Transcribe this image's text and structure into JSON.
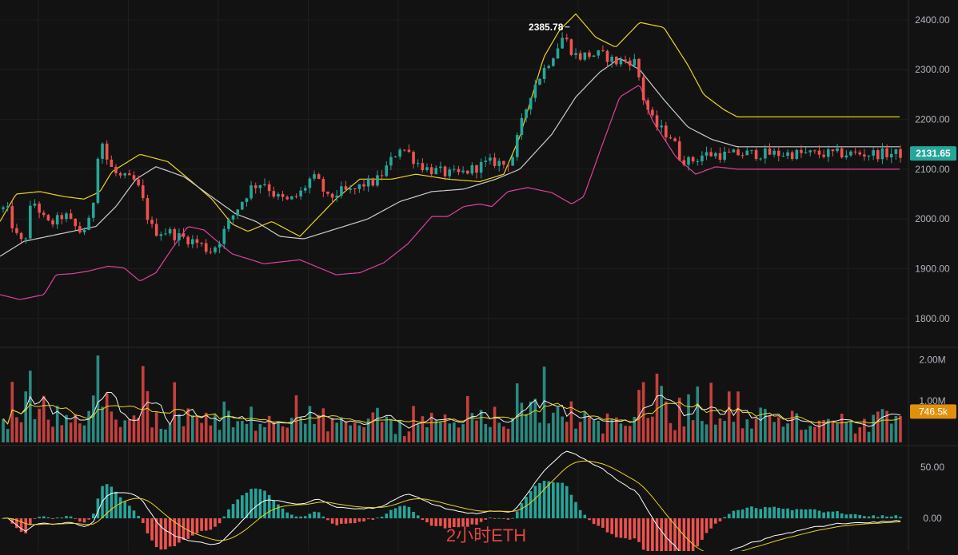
{
  "chart_data": [
    {
      "type": "candlestick",
      "name": "price",
      "ylim": [
        1750,
        2440
      ],
      "yticks": [
        1800,
        1900,
        2000,
        2100,
        2200,
        2300,
        2400
      ],
      "ytick_labels": [
        "1800.00",
        "1900.00",
        "2000.00",
        "2100.00",
        "2200.00",
        "2300.00",
        "2400.00"
      ],
      "bar_count": 200,
      "anchors": [
        [
          0,
          2000
        ],
        [
          6,
          2030
        ],
        [
          12,
          2005
        ],
        [
          18,
          1975
        ],
        [
          25,
          1950
        ],
        [
          32,
          1965
        ],
        [
          38,
          2020
        ],
        [
          45,
          2035
        ],
        [
          52,
          2005
        ],
        [
          60,
          1990
        ],
        [
          70,
          1995
        ],
        [
          80,
          2010
        ],
        [
          90,
          1990
        ],
        [
          100,
          1975
        ],
        [
          110,
          1985
        ],
        [
          116,
          2025
        ],
        [
          125,
          2175
        ],
        [
          132,
          2125
        ],
        [
          140,
          2100
        ],
        [
          148,
          2085
        ],
        [
          160,
          2080
        ],
        [
          170,
          2075
        ],
        [
          180,
          2030
        ],
        [
          188,
          1985
        ],
        [
          195,
          1975
        ],
        [
          210,
          1975
        ],
        [
          222,
          1965
        ],
        [
          235,
          1960
        ],
        [
          250,
          1950
        ],
        [
          262,
          1935
        ],
        [
          272,
          1950
        ],
        [
          285,
          1990
        ],
        [
          300,
          2030
        ],
        [
          315,
          2065
        ],
        [
          330,
          2075
        ],
        [
          345,
          2045
        ],
        [
          360,
          2035
        ],
        [
          375,
          2050
        ],
        [
          390,
          2085
        ],
        [
          400,
          2070
        ],
        [
          410,
          2040
        ],
        [
          425,
          2055
        ],
        [
          440,
          2055
        ],
        [
          455,
          2070
        ],
        [
          470,
          2075
        ],
        [
          480,
          2095
        ],
        [
          490,
          2120
        ],
        [
          500,
          2145
        ],
        [
          510,
          2135
        ],
        [
          520,
          2115
        ],
        [
          535,
          2100
        ],
        [
          550,
          2095
        ],
        [
          560,
          2090
        ],
        [
          575,
          2090
        ],
        [
          590,
          2100
        ],
        [
          605,
          2110
        ],
        [
          620,
          2115
        ],
        [
          630,
          2110
        ],
        [
          640,
          2120
        ],
        [
          652,
          2190
        ],
        [
          665,
          2260
        ],
        [
          680,
          2300
        ],
        [
          695,
          2340
        ],
        [
          705,
          2370
        ],
        [
          712,
          2345
        ],
        [
          722,
          2325
        ],
        [
          735,
          2330
        ],
        [
          750,
          2330
        ],
        [
          760,
          2325
        ],
        [
          770,
          2315
        ],
        [
          785,
          2320
        ],
        [
          795,
          2315
        ],
        [
          805,
          2240
        ],
        [
          818,
          2190
        ],
        [
          830,
          2175
        ],
        [
          840,
          2165
        ],
        [
          850,
          2125
        ],
        [
          860,
          2115
        ],
        [
          870,
          2120
        ],
        [
          880,
          2130
        ],
        [
          895,
          2130
        ],
        [
          910,
          2128
        ],
        [
          922,
          2131
        ]
      ],
      "upper_band_anchors": [
        [
          0,
          1995
        ],
        [
          20,
          2050
        ],
        [
          50,
          2055
        ],
        [
          80,
          2045
        ],
        [
          105,
          2040
        ],
        [
          125,
          2055
        ],
        [
          140,
          2095
        ],
        [
          175,
          2130
        ],
        [
          210,
          2115
        ],
        [
          240,
          2075
        ],
        [
          265,
          2040
        ],
        [
          290,
          1990
        ],
        [
          310,
          1975
        ],
        [
          340,
          1995
        ],
        [
          375,
          1965
        ],
        [
          420,
          2040
        ],
        [
          450,
          2080
        ],
        [
          490,
          2080
        ],
        [
          520,
          2090
        ],
        [
          560,
          2080
        ],
        [
          600,
          2075
        ],
        [
          630,
          2090
        ],
        [
          650,
          2165
        ],
        [
          680,
          2325
        ],
        [
          700,
          2380
        ],
        [
          720,
          2412
        ],
        [
          745,
          2365
        ],
        [
          770,
          2345
        ],
        [
          800,
          2395
        ],
        [
          830,
          2385
        ],
        [
          860,
          2310
        ],
        [
          880,
          2250
        ],
        [
          905,
          2220
        ],
        [
          922,
          2205
        ]
      ],
      "middle_band_anchors": [
        [
          0,
          1925
        ],
        [
          30,
          1955
        ],
        [
          60,
          1965
        ],
        [
          90,
          1975
        ],
        [
          120,
          1985
        ],
        [
          145,
          2025
        ],
        [
          170,
          2080
        ],
        [
          195,
          2105
        ],
        [
          230,
          2085
        ],
        [
          260,
          2050
        ],
        [
          295,
          2010
        ],
        [
          320,
          1995
        ],
        [
          350,
          1965
        ],
        [
          380,
          1960
        ],
        [
          420,
          1980
        ],
        [
          460,
          2000
        ],
        [
          500,
          2035
        ],
        [
          540,
          2055
        ],
        [
          580,
          2060
        ],
        [
          620,
          2080
        ],
        [
          650,
          2100
        ],
        [
          690,
          2170
        ],
        [
          720,
          2245
        ],
        [
          750,
          2295
        ],
        [
          775,
          2323
        ],
        [
          800,
          2300
        ],
        [
          830,
          2240
        ],
        [
          860,
          2185
        ],
        [
          890,
          2160
        ],
        [
          922,
          2145
        ]
      ],
      "lower_band_anchors": [
        [
          0,
          1848
        ],
        [
          25,
          1838
        ],
        [
          55,
          1848
        ],
        [
          70,
          1888
        ],
        [
          90,
          1890
        ],
        [
          110,
          1895
        ],
        [
          135,
          1905
        ],
        [
          155,
          1902
        ],
        [
          175,
          1875
        ],
        [
          195,
          1892
        ],
        [
          215,
          1940
        ],
        [
          235,
          1985
        ],
        [
          255,
          1978
        ],
        [
          290,
          1930
        ],
        [
          330,
          1910
        ],
        [
          375,
          1918
        ],
        [
          420,
          1888
        ],
        [
          450,
          1892
        ],
        [
          480,
          1912
        ],
        [
          510,
          1950
        ],
        [
          540,
          2005
        ],
        [
          560,
          2005
        ],
        [
          580,
          2025
        ],
        [
          600,
          2030
        ],
        [
          615,
          2025
        ],
        [
          635,
          2055
        ],
        [
          660,
          2063
        ],
        [
          690,
          2053
        ],
        [
          715,
          2030
        ],
        [
          730,
          2045
        ],
        [
          750,
          2135
        ],
        [
          775,
          2245
        ],
        [
          800,
          2270
        ],
        [
          815,
          2200
        ],
        [
          845,
          2125
        ],
        [
          870,
          2090
        ],
        [
          895,
          2105
        ],
        [
          922,
          2100
        ]
      ],
      "high_annotation": "2385.78",
      "high_bar": 711,
      "last_price": "2131.65",
      "last_price_value": 2131.65,
      "colors": {
        "up": "#26a69a",
        "down": "#ef5350",
        "upper": "#ecd41a",
        "middle": "#cccccc",
        "lower": "#e040a0",
        "badge": "#26a69a"
      }
    },
    {
      "type": "bar",
      "name": "volume",
      "ylim": [
        0,
        2200000
      ],
      "yticks": [
        1000000,
        2000000
      ],
      "ytick_labels": [
        "1.00M",
        "2.00M"
      ],
      "last_value_label": "746.5k",
      "last_value": 746500,
      "colors": {
        "badge": "#e0900c",
        "ma1": "#eeeeee",
        "ma2": "#ecd41a"
      }
    },
    {
      "type": "macd",
      "name": "macd",
      "ylim": [
        -32,
        68
      ],
      "yticks": [
        0,
        50
      ],
      "ytick_labels": [
        "0.00",
        "50.00"
      ],
      "colors": {
        "pos": "#26a69a",
        "neg": "#ef5350",
        "dif": "#ffffff",
        "dea": "#ecd41a"
      }
    }
  ],
  "watermark": "2小时ETH"
}
